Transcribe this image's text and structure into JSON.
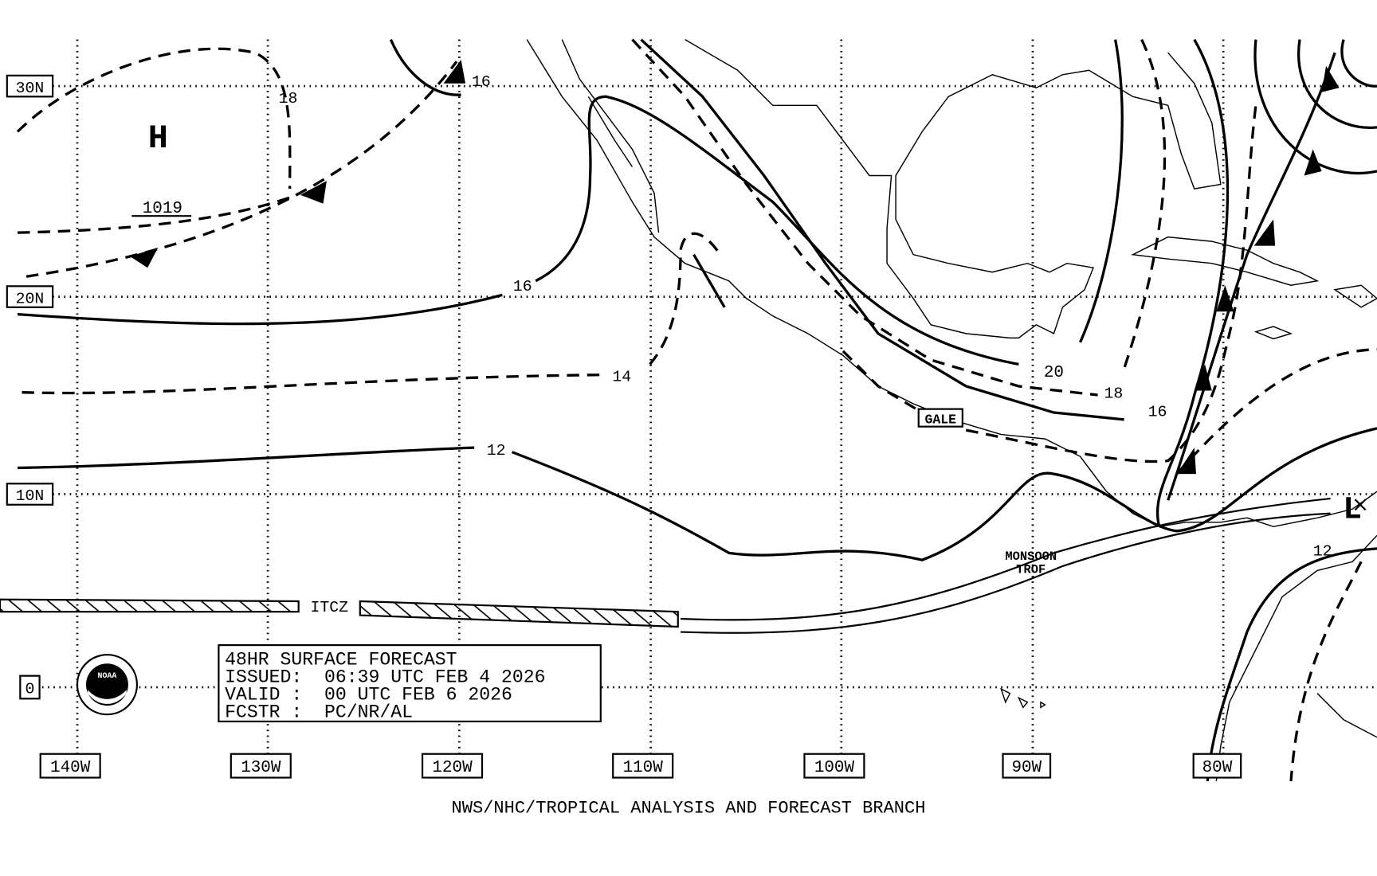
{
  "grid": {
    "latitudes": [
      "30N",
      "20N",
      "10N",
      "0"
    ],
    "longitudes": [
      "140W",
      "130W",
      "120W",
      "110W",
      "100W",
      "90W",
      "80W"
    ]
  },
  "forecast_box": {
    "lines": [
      "48HR SURFACE FORECAST",
      "ISSUED:  06:39 UTC FEB 4 2026",
      "VALID :  00 UTC FEB 6 2026",
      "FCSTR :  PC/NR/AL"
    ]
  },
  "footer": "NWS/NHC/TROPICAL ANALYSIS AND FORECAST BRANCH",
  "features": {
    "high": {
      "symbol": "H",
      "pressure": "1019"
    },
    "low": {
      "symbol": "L"
    },
    "isobar_labels": [
      "18",
      "16",
      "16",
      "14",
      "12",
      "20",
      "18",
      "16",
      "12"
    ],
    "itcz": "ITCZ",
    "monsoon_trough": [
      "MONSOON",
      "TROF"
    ],
    "gale": "GALE"
  },
  "logo": "NOAA"
}
